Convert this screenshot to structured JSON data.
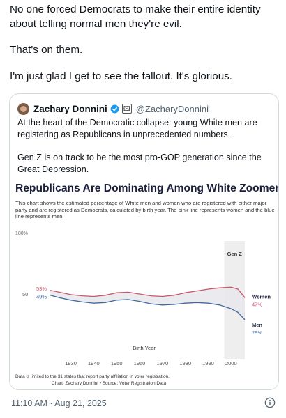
{
  "post": {
    "lines": [
      "No one forced Democrats to make their entire identity about telling normal men they're evil.",
      "That's on them.",
      "I'm just glad I get to see the fallout. It's glorious."
    ],
    "timestamp": "11:10 AM · Aug 21, 2025"
  },
  "quote": {
    "author_name": "Zachary Donnini",
    "handle": "@ZacharyDonnini",
    "flag_glyph": "🖾",
    "paragraphs": [
      "At the heart of the Democratic collapse: young White men are registering as Republicans in unprecedented numbers.",
      "Gen Z is on track to be the most pro-GOP generation since the Great Depression."
    ]
  },
  "colors": {
    "women": "#c8566b",
    "men": "#41699e",
    "band": "#e8e8ec",
    "shade": "#eeeeee",
    "verified": "#1d9bf0"
  },
  "chart_data": {
    "type": "line",
    "title": "Republicans Are Dominating Among White Zoomers",
    "subtitle": "This chart shows the estimated percentage of White men and women who are registered with either major party and are registered as Democrats, calculated by birth year. The pink line represents women and the blue line represents men.",
    "xlabel": "Birth Year",
    "ylabel": "",
    "ylim": [
      0,
      100
    ],
    "y_ticks": [
      "100%",
      "50"
    ],
    "x_ticks": [
      "1930",
      "1940",
      "1950",
      "1960",
      "1970",
      "1980",
      "1990",
      "2000"
    ],
    "shaded_region": {
      "label": "Gen Z",
      "from": 1997,
      "to": 2006
    },
    "series": [
      {
        "name": "Women",
        "start_label": "53%",
        "end_label": "47%",
        "points": [
          [
            1921,
            53
          ],
          [
            1925,
            51.5
          ],
          [
            1930,
            49.5
          ],
          [
            1935,
            48.5
          ],
          [
            1940,
            48
          ],
          [
            1945,
            49
          ],
          [
            1950,
            51
          ],
          [
            1955,
            51.5
          ],
          [
            1960,
            50
          ],
          [
            1965,
            48.5
          ],
          [
            1970,
            48
          ],
          [
            1975,
            49
          ],
          [
            1980,
            51
          ],
          [
            1985,
            52.5
          ],
          [
            1990,
            54
          ],
          [
            1995,
            55
          ],
          [
            2000,
            55.5
          ],
          [
            2003,
            54
          ],
          [
            2006,
            47
          ]
        ]
      },
      {
        "name": "Men",
        "start_label": "49%",
        "end_label": "29%",
        "points": [
          [
            1921,
            49
          ],
          [
            1925,
            47
          ],
          [
            1930,
            45
          ],
          [
            1935,
            43.5
          ],
          [
            1940,
            42.5
          ],
          [
            1945,
            43
          ],
          [
            1950,
            45
          ],
          [
            1955,
            45.5
          ],
          [
            1960,
            44
          ],
          [
            1965,
            42
          ],
          [
            1970,
            41
          ],
          [
            1975,
            41.5
          ],
          [
            1980,
            42.5
          ],
          [
            1985,
            43
          ],
          [
            1990,
            42.5
          ],
          [
            1995,
            41
          ],
          [
            2000,
            38
          ],
          [
            2003,
            35
          ],
          [
            2006,
            29
          ]
        ]
      }
    ],
    "footnote": "Data is limited to the 31 states that report party affiliation in voter registration.",
    "source": "Chart: Zachary Donnini • Source: Voter Registration Data"
  }
}
